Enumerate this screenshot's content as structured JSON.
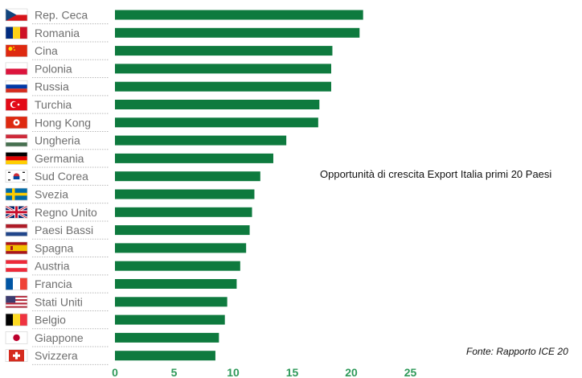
{
  "header": {
    "title": "Opportunità di crescita Export Italia primi 20 Paesi",
    "source": "Fonte: Rapporto ICE 20"
  },
  "chart_data": {
    "type": "bar",
    "orientation": "horizontal",
    "title": "Opportunità di crescita Export Italia primi 20 Paesi",
    "categories": [
      "Rep. Ceca",
      "Romania",
      "Cina",
      "Polonia",
      "Russia",
      "Turchia",
      "Hong Kong",
      "Ungheria",
      "Germania",
      "Sud Corea",
      "Svezia",
      "Regno Unito",
      "Paesi Bassi",
      "Spagna",
      "Austria",
      "Francia",
      "Stati Uniti",
      "Belgio",
      "Giappone",
      "Svizzera"
    ],
    "values": [
      21.0,
      20.7,
      18.4,
      18.3,
      18.3,
      17.3,
      17.2,
      14.5,
      13.4,
      12.3,
      11.8,
      11.6,
      11.4,
      11.1,
      10.6,
      10.3,
      9.5,
      9.3,
      8.8,
      8.5
    ],
    "xlim": [
      0,
      25
    ],
    "xticks": [
      "0",
      "5",
      "10",
      "15",
      "20",
      "25"
    ],
    "bar_color": "#0e7a3e",
    "tick_color": "#2f9a5a",
    "grid": false,
    "flags": [
      "cz-flag-icon",
      "ro-flag-icon",
      "cn-flag-icon",
      "pl-flag-icon",
      "ru-flag-icon",
      "tr-flag-icon",
      "hk-flag-icon",
      "hu-flag-icon",
      "de-flag-icon",
      "kr-flag-icon",
      "se-flag-icon",
      "gb-flag-icon",
      "nl-flag-icon",
      "es-flag-icon",
      "at-flag-icon",
      "fr-flag-icon",
      "us-flag-icon",
      "be-flag-icon",
      "jp-flag-icon",
      "ch-flag-icon"
    ]
  }
}
